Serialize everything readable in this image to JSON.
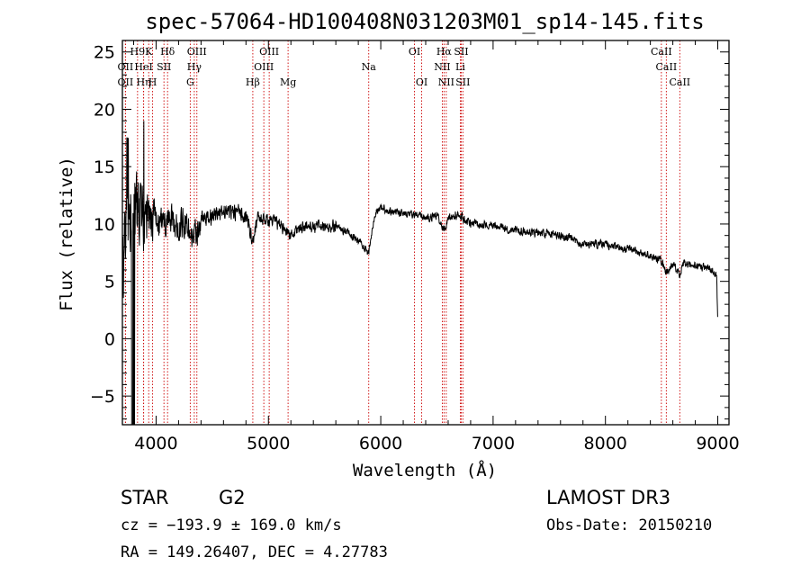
{
  "chart_data": {
    "type": "line",
    "title": "spec-57064-HD100408N031203M01_sp14-145.fits",
    "xlabel": "Wavelength (Å)",
    "ylabel": "Flux (relative)",
    "xlim": [
      3700,
      9100
    ],
    "ylim": [
      -7.5,
      26
    ],
    "xticks": [
      4000,
      5000,
      6000,
      7000,
      8000,
      9000
    ],
    "xtick_labels": [
      "4000",
      "5000",
      "6000",
      "7000",
      "8000",
      "9000"
    ],
    "yticks": [
      -5,
      0,
      5,
      10,
      15,
      20,
      25
    ],
    "ytick_labels": [
      "−5",
      "0",
      "5",
      "10",
      "15",
      "20",
      "25"
    ],
    "line_color": "#000000",
    "marker_color": "#cc0000",
    "spectrum_anchors": {
      "x": [
        3700,
        3730,
        3760,
        3800,
        3850,
        3900,
        3950,
        4000,
        4050,
        4100,
        4150,
        4200,
        4250,
        4300,
        4340,
        4400,
        4500,
        4600,
        4700,
        4800,
        4861,
        4900,
        5000,
        5100,
        5200,
        5300,
        5400,
        5500,
        5600,
        5700,
        5800,
        5893,
        5950,
        6000,
        6100,
        6200,
        6300,
        6400,
        6500,
        6563,
        6600,
        6700,
        6800,
        6900,
        7000,
        7200,
        7400,
        7600,
        7800,
        8000,
        8200,
        8400,
        8500,
        8542,
        8600,
        8662,
        8700,
        8800,
        8900,
        8950,
        8990,
        9000
      ],
      "y": [
        5,
        9,
        12,
        11,
        10.5,
        10.5,
        10,
        10.2,
        10,
        10.3,
        10,
        9.8,
        10,
        9.5,
        8.5,
        10.5,
        10.5,
        11.2,
        11,
        10.8,
        8.5,
        10.5,
        10.3,
        10,
        9,
        9.8,
        9.8,
        9.8,
        9.7,
        9.4,
        8.5,
        7.5,
        11,
        11.5,
        11,
        11,
        10.8,
        10.5,
        10.8,
        9.5,
        10.5,
        10.8,
        10,
        10,
        9.8,
        9.5,
        9.2,
        9,
        8.3,
        8.2,
        7.8,
        7.2,
        6.8,
        5.8,
        6.5,
        5.6,
        6.5,
        6.3,
        6.2,
        6.1,
        5.5,
        1.2
      ]
    },
    "lines": [
      {
        "label": "OII",
        "wave": 3727,
        "row": 2
      },
      {
        "label": "H9",
        "wave": 3835,
        "row": 0
      },
      {
        "label": "OII",
        "wave": 3727,
        "row": 1
      },
      {
        "label": "Hη",
        "wave": 3889,
        "row": 2
      },
      {
        "label": "K",
        "wave": 3934,
        "row": 0
      },
      {
        "label": "HeI",
        "wave": 3889,
        "row": 1
      },
      {
        "label": "H",
        "wave": 3969,
        "row": 2
      },
      {
        "label": "SII",
        "wave": 4070,
        "row": 1
      },
      {
        "label": "Hδ",
        "wave": 4102,
        "row": 0
      },
      {
        "label": "OIII",
        "wave": 4363,
        "row": 0
      },
      {
        "label": "Hγ",
        "wave": 4340,
        "row": 1
      },
      {
        "label": "G",
        "wave": 4304,
        "row": 2
      },
      {
        "label": "Hβ",
        "wave": 4861,
        "row": 2
      },
      {
        "label": "OIII",
        "wave": 5007,
        "row": 0
      },
      {
        "label": "OIII",
        "wave": 4959,
        "row": 1
      },
      {
        "label": "Mg",
        "wave": 5175,
        "row": 2
      },
      {
        "label": "Na",
        "wave": 5893,
        "row": 1
      },
      {
        "label": "OI",
        "wave": 6300,
        "row": 0
      },
      {
        "label": "OI",
        "wave": 6364,
        "row": 2
      },
      {
        "label": "Hα",
        "wave": 6563,
        "row": 0
      },
      {
        "label": "SII",
        "wave": 6716,
        "row": 0
      },
      {
        "label": "NII",
        "wave": 6548,
        "row": 1
      },
      {
        "label": "Li",
        "wave": 6708,
        "row": 1
      },
      {
        "label": "NII",
        "wave": 6583,
        "row": 2
      },
      {
        "label": "SII",
        "wave": 6731,
        "row": 2
      },
      {
        "label": "CaII",
        "wave": 8498,
        "row": 0
      },
      {
        "label": "CaII",
        "wave": 8542,
        "row": 1
      },
      {
        "label": "CaII",
        "wave": 8662,
        "row": 2
      }
    ]
  },
  "info": {
    "object_class": "STAR",
    "subclass": "G2",
    "survey": "LAMOST DR3",
    "redshift": "cz = −193.9 ± 169.0 km/s",
    "obs_date": "Obs-Date: 20150210",
    "coords": "RA = 149.26407, DEC =   4.27783"
  }
}
